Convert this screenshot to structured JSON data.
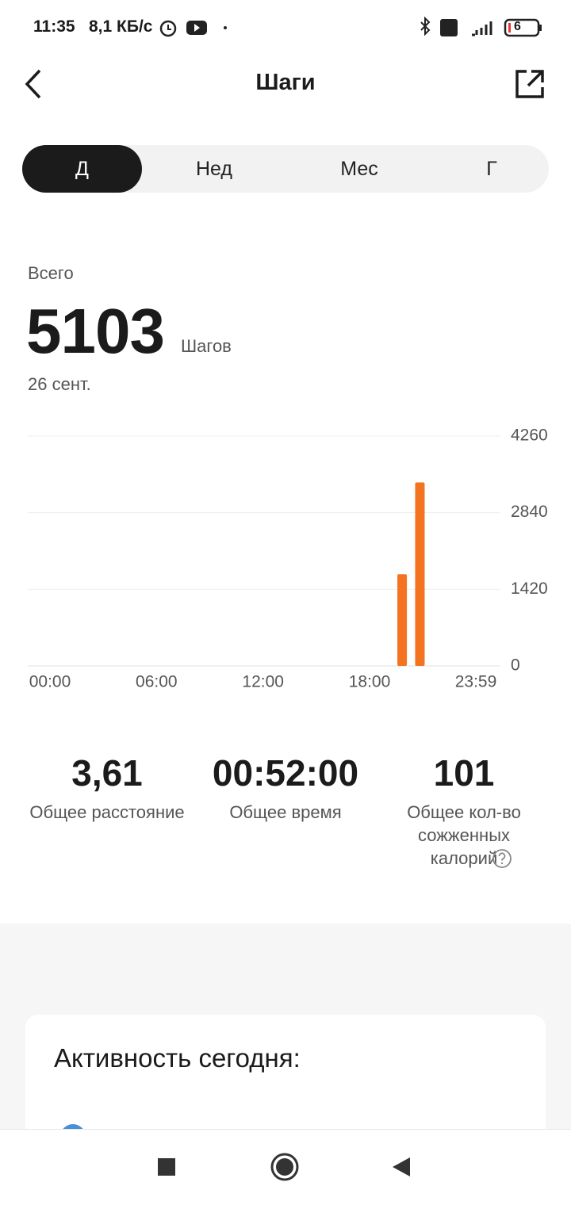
{
  "status_bar": {
    "time": "11:35",
    "speed": "8,1 КБ/с",
    "battery": "6"
  },
  "header": {
    "title": "Шаги"
  },
  "tabs": [
    "Д",
    "Нед",
    "Мес",
    "Г"
  ],
  "summary": {
    "label": "Всего",
    "value": "5103",
    "unit": "Шагов",
    "date": "26 сент."
  },
  "chart_data": {
    "type": "bar",
    "x": [
      1190,
      1250
    ],
    "values": [
      1700,
      3400
    ],
    "color": "#f47321",
    "xlim": [
      0,
      1439
    ],
    "xticks": [
      {
        "value": 0,
        "label": "00:00"
      },
      {
        "value": 360,
        "label": "06:00"
      },
      {
        "value": 720,
        "label": "12:00"
      },
      {
        "value": 1080,
        "label": "18:00"
      },
      {
        "value": 1439,
        "label": "23:59"
      }
    ],
    "ylim": [
      0,
      4260
    ],
    "yticks": [
      0,
      1420,
      2840,
      4260
    ],
    "grid": true
  },
  "stats": [
    {
      "value": "3,61",
      "label": "Общее расстояние"
    },
    {
      "value": "00:52:00",
      "label": "Общее время"
    },
    {
      "value": "101",
      "label": "Общее кол-во сожженных калорий"
    }
  ],
  "card": {
    "title": "Активность сегодня:"
  }
}
